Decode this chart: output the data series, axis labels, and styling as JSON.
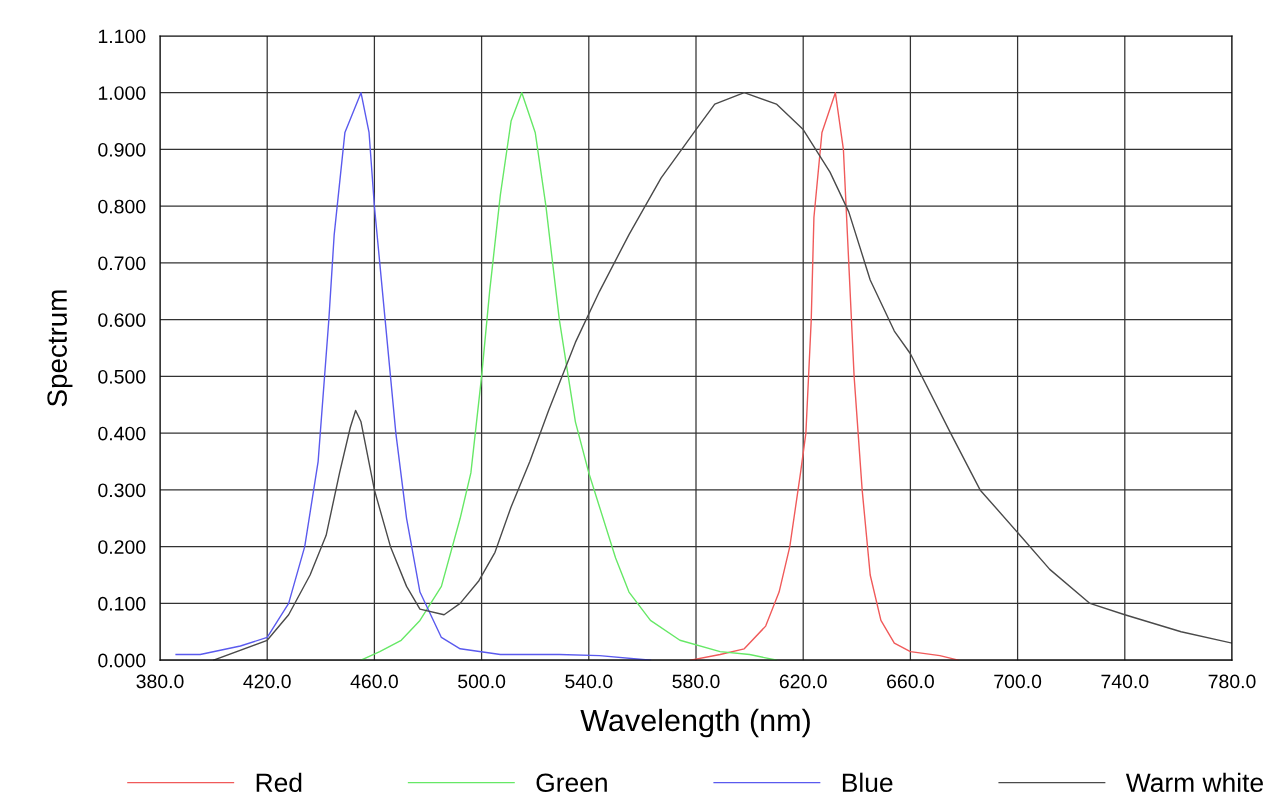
{
  "chart_data": {
    "type": "line",
    "xlabel": "Wavelength (nm)",
    "ylabel": "Spectrum",
    "xlim": [
      380,
      780
    ],
    "ylim": [
      0,
      1.1
    ],
    "xticks": [
      {
        "value": 380,
        "label": "380.0"
      },
      {
        "value": 420,
        "label": "420.0"
      },
      {
        "value": 460,
        "label": "460.0"
      },
      {
        "value": 500,
        "label": "500.0"
      },
      {
        "value": 540,
        "label": "540.0"
      },
      {
        "value": 580,
        "label": "580.0"
      },
      {
        "value": 620,
        "label": "620.0"
      },
      {
        "value": 660,
        "label": "660.0"
      },
      {
        "value": 700,
        "label": "700.0"
      },
      {
        "value": 740,
        "label": "740.0"
      },
      {
        "value": 780,
        "label": "780.0"
      }
    ],
    "yticks": [
      {
        "value": 0,
        "label": "0.000"
      },
      {
        "value": 0.1,
        "label": "0.100"
      },
      {
        "value": 0.2,
        "label": "0.200"
      },
      {
        "value": 0.3,
        "label": "0.300"
      },
      {
        "value": 0.4,
        "label": "0.400"
      },
      {
        "value": 0.5,
        "label": "0.500"
      },
      {
        "value": 0.6,
        "label": "0.600"
      },
      {
        "value": 0.7,
        "label": "0.700"
      },
      {
        "value": 0.8,
        "label": "0.800"
      },
      {
        "value": 0.9,
        "label": "0.900"
      },
      {
        "value": 1.0,
        "label": "1.000"
      },
      {
        "value": 1.1,
        "label": "1.100"
      }
    ],
    "grid": true,
    "legend": "bottom",
    "line_style": "solid",
    "marker": "none",
    "series": [
      {
        "name": "Red",
        "color": "#f05a5a",
        "x": [
          578,
          589,
          598,
          606,
          611,
          615,
          619,
          621,
          623,
          624,
          627,
          632,
          635,
          637,
          639,
          642,
          645,
          649,
          654,
          660,
          671,
          678
        ],
        "values": [
          0,
          0.01,
          0.02,
          0.06,
          0.12,
          0.2,
          0.33,
          0.4,
          0.6,
          0.78,
          0.93,
          1.0,
          0.9,
          0.7,
          0.5,
          0.3,
          0.15,
          0.07,
          0.03,
          0.015,
          0.008,
          0
        ]
      },
      {
        "name": "Green",
        "color": "#66e866",
        "x": [
          455,
          462,
          470,
          477,
          485,
          492,
          496,
          500,
          503,
          507,
          511,
          515,
          520,
          524,
          529,
          535,
          540,
          544,
          550,
          555,
          563,
          574,
          589,
          600,
          610
        ],
        "values": [
          0,
          0.015,
          0.035,
          0.07,
          0.13,
          0.25,
          0.33,
          0.5,
          0.65,
          0.82,
          0.95,
          1.0,
          0.93,
          0.8,
          0.6,
          0.42,
          0.33,
          0.27,
          0.18,
          0.12,
          0.07,
          0.035,
          0.015,
          0.01,
          0
        ]
      },
      {
        "name": "Blue",
        "color": "#5a5aee",
        "x": [
          386,
          395,
          410,
          420,
          428,
          434,
          439,
          443,
          445,
          449,
          455,
          458,
          460,
          464,
          468,
          472,
          477,
          485,
          492,
          507,
          529,
          544,
          563
        ],
        "values": [
          0.01,
          0.01,
          0.025,
          0.04,
          0.1,
          0.2,
          0.35,
          0.6,
          0.75,
          0.93,
          1.0,
          0.93,
          0.8,
          0.6,
          0.4,
          0.25,
          0.12,
          0.04,
          0.02,
          0.01,
          0.01,
          0.008,
          0
        ]
      },
      {
        "name": "Warm white",
        "color": "#4a4a4a",
        "x": [
          400,
          420,
          428,
          436,
          442,
          447,
          451,
          453,
          455,
          460,
          466,
          472,
          477,
          486,
          492,
          499,
          505,
          511,
          518,
          525,
          535,
          544,
          555,
          567,
          580,
          587,
          598,
          610,
          620,
          630,
          637,
          645,
          654,
          660,
          675,
          686,
          700,
          712,
          727,
          740,
          761,
          780
        ],
        "values": [
          0,
          0.035,
          0.08,
          0.15,
          0.22,
          0.33,
          0.41,
          0.44,
          0.42,
          0.3,
          0.2,
          0.13,
          0.09,
          0.08,
          0.1,
          0.14,
          0.19,
          0.27,
          0.35,
          0.44,
          0.56,
          0.65,
          0.75,
          0.85,
          0.935,
          0.98,
          1.0,
          0.98,
          0.935,
          0.86,
          0.79,
          0.67,
          0.58,
          0.54,
          0.4,
          0.3,
          0.225,
          0.16,
          0.1,
          0.08,
          0.05,
          0.03
        ]
      }
    ]
  }
}
